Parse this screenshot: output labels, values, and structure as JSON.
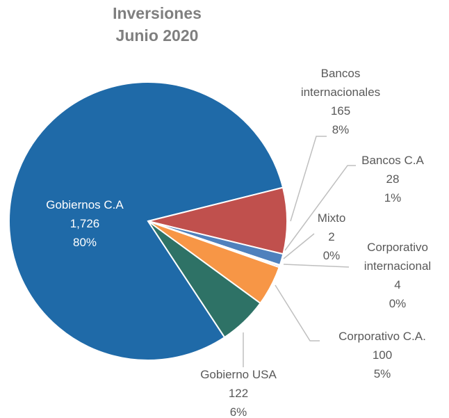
{
  "chart_data": {
    "type": "pie",
    "title": "Inversiones",
    "subtitle": "Junio 2020",
    "categories": [
      "Gobiernos C.A",
      "Bancos internacionales",
      "Bancos C.A",
      "Mixto",
      "Corporativo internacional",
      "Corporativo C.A.",
      "Gobierno USA"
    ],
    "values": [
      1726,
      165,
      28,
      2,
      4,
      100,
      122
    ],
    "value_labels": [
      "1,726",
      "165",
      "28",
      "2",
      "4",
      "100",
      "122"
    ],
    "percent_labels": [
      "80%",
      "8%",
      "1%",
      "0%",
      "0%",
      "5%",
      "6%"
    ],
    "colors": [
      "#1f6aa8",
      "#c0504d",
      "#4f81bd",
      "#9bbb59",
      "#8064a2",
      "#f79646",
      "#2e7266"
    ]
  }
}
